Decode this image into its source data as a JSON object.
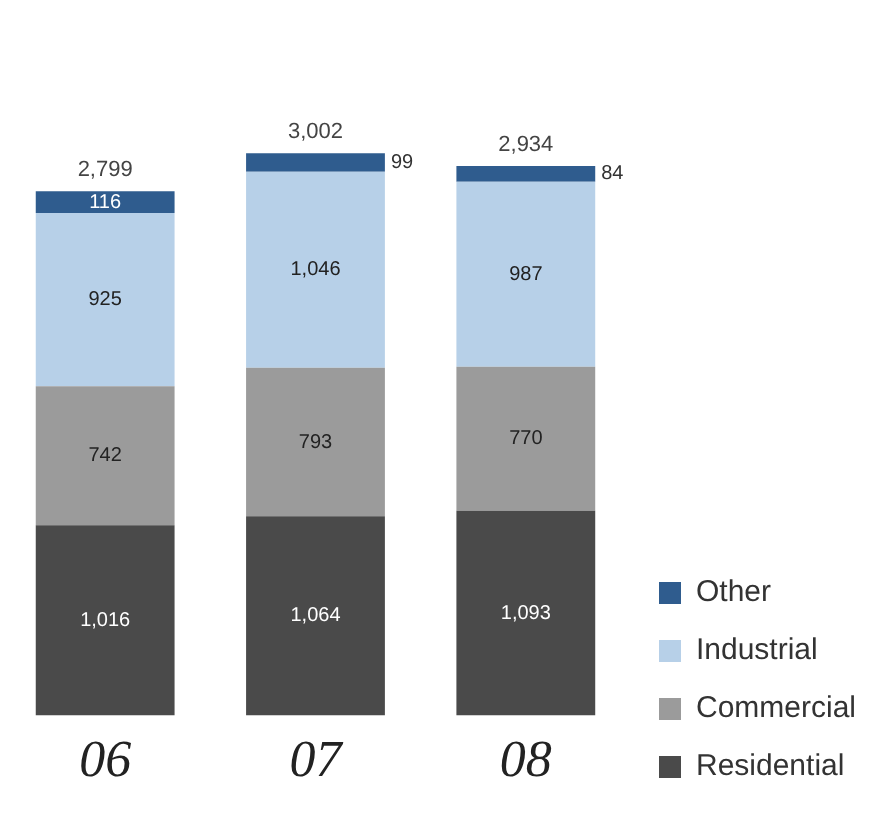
{
  "chart_data": {
    "type": "bar",
    "stacked": true,
    "categories": [
      "06",
      "07",
      "08"
    ],
    "series": [
      {
        "name": "Residential",
        "color": "#4a4a4a",
        "values": [
          1016,
          1064,
          1093
        ],
        "value_labels": [
          "1,016",
          "1,064",
          "1,093"
        ]
      },
      {
        "name": "Commercial",
        "color": "#9b9b9b",
        "values": [
          742,
          793,
          770
        ],
        "value_labels": [
          "742",
          "793",
          "770"
        ]
      },
      {
        "name": "Industrial",
        "color": "#b7d0e8",
        "values": [
          925,
          1046,
          987
        ],
        "value_labels": [
          "925",
          "1,046",
          "987"
        ]
      },
      {
        "name": "Other",
        "color": "#2f5c8e",
        "values": [
          116,
          99,
          84
        ],
        "value_labels": [
          "116",
          "99",
          "84"
        ]
      }
    ],
    "totals": [
      "2,799",
      "3,002",
      "2,934"
    ],
    "legend": "right",
    "grid": false
  }
}
